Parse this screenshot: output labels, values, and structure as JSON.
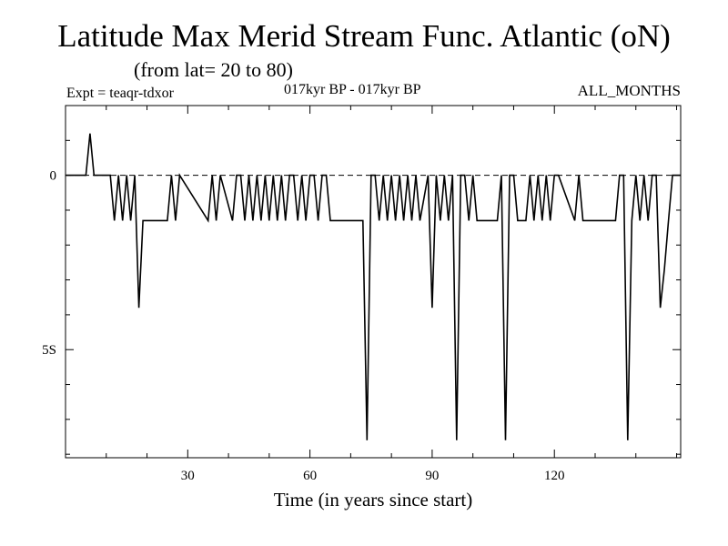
{
  "chart_data": {
    "type": "line",
    "title": "Latitude Max Merid Stream Func. Atlantic (oN)",
    "subtitle": "(from lat= 20 to 80)",
    "experiment": "Expt = teaqr-tdxor",
    "period": "017kyr BP - 017kyr BP",
    "months": "ALL_MONTHS",
    "xlabel": "Time (in years since start)",
    "ylabel": "",
    "xlim": [
      0,
      151
    ],
    "ylim": [
      -8.1,
      2.0
    ],
    "x_ticks": [
      30,
      60,
      90,
      120
    ],
    "x_tick_labels": [
      "30",
      "60",
      "90",
      "120"
    ],
    "y_ticks": [
      0,
      -5
    ],
    "y_tick_labels": [
      "0",
      "5S"
    ],
    "reference_line": {
      "y": 0,
      "style": "dashed"
    },
    "grid": false,
    "line_color": "#000000",
    "series": [
      {
        "x": [
          0,
          5,
          6,
          7,
          11,
          12,
          13,
          14,
          15,
          16,
          17,
          18,
          19,
          20,
          25,
          26,
          27,
          28,
          35,
          36,
          37,
          38,
          41,
          42,
          43,
          44,
          45,
          46,
          47,
          48,
          49,
          50,
          51,
          52,
          53,
          54,
          55,
          56,
          57,
          58,
          59,
          60,
          61,
          62,
          63,
          64,
          65,
          66,
          73,
          74,
          75,
          76,
          77,
          78,
          79,
          80,
          81,
          82,
          83,
          84,
          85,
          86,
          87,
          89,
          90,
          91,
          92,
          93,
          94,
          95,
          96,
          97,
          98,
          99,
          100,
          101,
          106,
          107,
          108,
          109,
          110,
          111,
          113,
          114,
          115,
          116,
          117,
          118,
          119,
          120,
          121,
          125,
          126,
          127,
          128,
          135,
          136,
          137,
          138,
          139,
          140,
          141,
          142,
          143,
          144,
          145,
          146,
          147,
          148,
          149,
          150,
          151
        ],
        "y": [
          0,
          0,
          1.2,
          0,
          0,
          -1.3,
          0,
          -1.3,
          0,
          -1.3,
          0,
          -3.8,
          -1.3,
          -1.3,
          -1.3,
          0,
          -1.3,
          0,
          -1.3,
          0,
          -1.3,
          0,
          -1.3,
          0,
          0,
          -1.3,
          0,
          -1.3,
          0,
          -1.3,
          0,
          -1.3,
          0,
          -1.3,
          0,
          -1.3,
          0,
          0,
          -1.3,
          0,
          -1.3,
          0,
          0,
          -1.3,
          0,
          0,
          -1.3,
          -1.3,
          -1.3,
          -7.6,
          0,
          0,
          -1.3,
          0,
          -1.3,
          0,
          -1.3,
          0,
          -1.3,
          0,
          -1.3,
          0,
          -1.3,
          0,
          -3.8,
          0,
          -1.3,
          0,
          -1.3,
          0,
          -7.6,
          0,
          0,
          -1.3,
          0,
          -1.3,
          -1.3,
          0,
          -7.6,
          0,
          0,
          -1.3,
          -1.3,
          0,
          -1.3,
          0,
          -1.3,
          0,
          -1.3,
          0,
          0,
          -1.3,
          0,
          -1.3,
          -1.3,
          -1.3,
          0,
          0,
          -7.6,
          -1.3,
          0,
          -1.3,
          0,
          -1.3,
          0,
          0,
          -3.8,
          -2.7,
          -1.3,
          0,
          0,
          0
        ]
      }
    ]
  }
}
